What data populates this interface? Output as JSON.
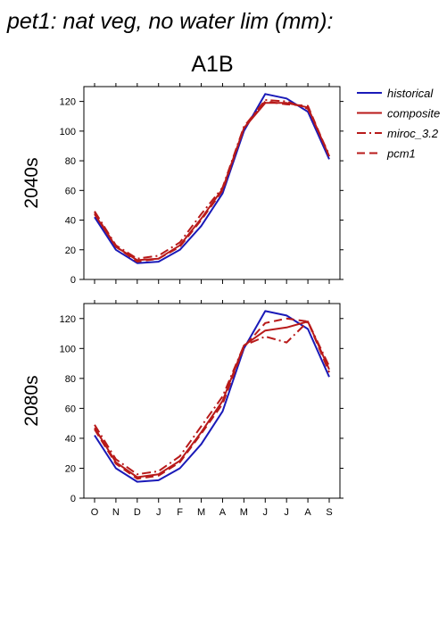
{
  "title": "pet1: nat veg, no water lim (mm):",
  "scenario": "A1B",
  "colors": {
    "historical": "#1a1ab8",
    "projection": "#b81a1a"
  },
  "legend": [
    {
      "label": "historical",
      "color": "#1a1ab8",
      "dash": "solid"
    },
    {
      "label": "composite",
      "color": "#b81a1a",
      "dash": "solid"
    },
    {
      "label": "miroc_3.2",
      "color": "#b81a1a",
      "dash": "dashdot"
    },
    {
      "label": "pcm1",
      "color": "#b81a1a",
      "dash": "dashed"
    }
  ],
  "chart_data": [
    {
      "type": "line",
      "row_label": "2040s",
      "categories": [
        "O",
        "N",
        "D",
        "J",
        "F",
        "M",
        "A",
        "M",
        "J",
        "J",
        "A",
        "S"
      ],
      "ylim": [
        0,
        130
      ],
      "yticks": [
        0,
        20,
        40,
        60,
        80,
        100,
        120
      ],
      "series": [
        {
          "name": "historical",
          "values": [
            42,
            20,
            11,
            12,
            20,
            36,
            58,
            100,
            125,
            122,
            113,
            81
          ]
        },
        {
          "name": "composite",
          "values": [
            44,
            22,
            13,
            14,
            23,
            41,
            61,
            102,
            119,
            119,
            116,
            83
          ]
        },
        {
          "name": "miroc_3.2",
          "values": [
            46,
            23,
            14,
            16,
            25,
            44,
            62,
            103,
            121,
            120,
            115,
            84
          ]
        },
        {
          "name": "pcm1",
          "values": [
            45,
            22,
            12,
            14,
            22,
            40,
            60,
            102,
            120,
            118,
            117,
            83
          ]
        }
      ]
    },
    {
      "type": "line",
      "row_label": "2080s",
      "categories": [
        "O",
        "N",
        "D",
        "J",
        "F",
        "M",
        "A",
        "M",
        "J",
        "J",
        "A",
        "S"
      ],
      "ylim": [
        0,
        130
      ],
      "yticks": [
        0,
        20,
        40,
        60,
        80,
        100,
        120
      ],
      "series": [
        {
          "name": "historical",
          "values": [
            42,
            20,
            11,
            12,
            20,
            36,
            58,
            100,
            125,
            122,
            113,
            81
          ]
        },
        {
          "name": "composite",
          "values": [
            47,
            24,
            14,
            16,
            25,
            44,
            65,
            102,
            112,
            114,
            118,
            86
          ]
        },
        {
          "name": "miroc_3.2",
          "values": [
            49,
            26,
            16,
            18,
            28,
            48,
            68,
            102,
            108,
            104,
            118,
            88
          ]
        },
        {
          "name": "pcm1",
          "values": [
            46,
            23,
            13,
            15,
            24,
            43,
            63,
            101,
            117,
            120,
            118,
            84
          ]
        }
      ]
    }
  ]
}
